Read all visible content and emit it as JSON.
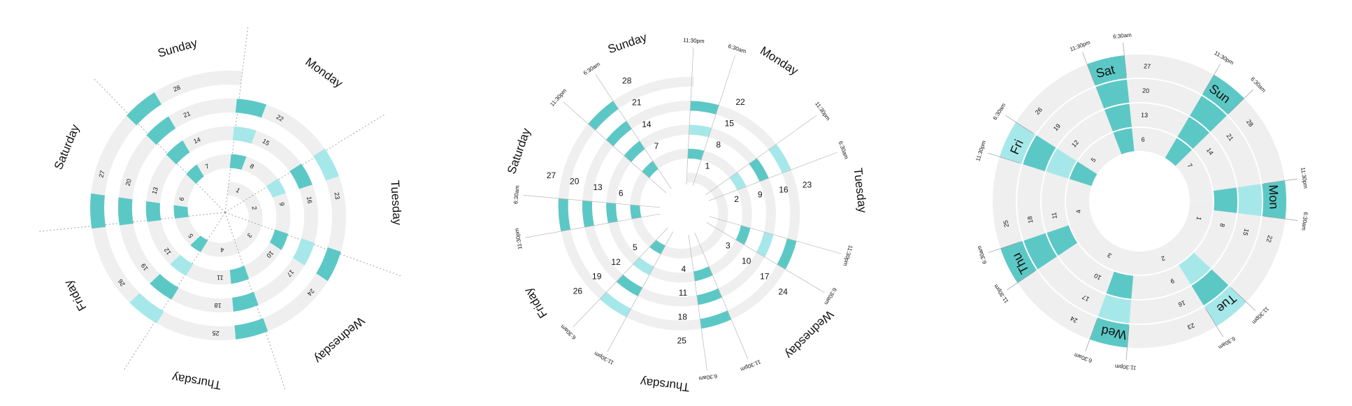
{
  "colors": {
    "track": "#efefef",
    "sleep_dark": "#5cc8c6",
    "sleep_light": "#a6e8ea",
    "guide": "#999999",
    "text": "#111111"
  },
  "chart_data": [
    {
      "type": "radial-spiral",
      "title": "",
      "days": [
        "Monday",
        "Tuesday",
        "Wednesday",
        "Thursday",
        "Friday",
        "Saturday",
        "Sunday"
      ],
      "date_labels": [
        "1",
        "2",
        "3",
        "4",
        "5",
        "6",
        "7",
        "8",
        "9",
        "10",
        "11",
        "12",
        "13",
        "14",
        "15",
        "16",
        "17",
        "18",
        "19",
        "20",
        "21",
        "22",
        "23",
        "24",
        "25",
        "26",
        "27",
        "28"
      ],
      "separators": "dotted",
      "time_labels": [],
      "sleep": [
        {
          "date": 5,
          "start": "23:30",
          "end": "06:30",
          "shade": "dark"
        },
        {
          "date": 6,
          "start": "23:30",
          "end": "06:30",
          "shade": "dark"
        },
        {
          "date": 7,
          "start": "23:30",
          "end": "06:30",
          "shade": "dark"
        },
        {
          "date": 8,
          "start": "23:30",
          "end": "06:30",
          "shade": "dark"
        },
        {
          "date": 9,
          "start": "23:30",
          "end": "06:30",
          "shade": "light"
        },
        {
          "date": 10,
          "start": "23:30",
          "end": "06:30",
          "shade": "dark"
        },
        {
          "date": 11,
          "start": "23:30",
          "end": "06:30",
          "shade": "dark"
        },
        {
          "date": 12,
          "start": "23:30",
          "end": "06:30",
          "shade": "light"
        },
        {
          "date": 13,
          "start": "23:30",
          "end": "06:30",
          "shade": "dark"
        },
        {
          "date": 14,
          "start": "23:30",
          "end": "06:30",
          "shade": "dark"
        },
        {
          "date": 15,
          "start": "23:30",
          "end": "06:30",
          "shade": "light"
        },
        {
          "date": 16,
          "start": "23:30",
          "end": "06:30",
          "shade": "dark"
        },
        {
          "date": 17,
          "start": "23:30",
          "end": "06:30",
          "shade": "light"
        },
        {
          "date": 18,
          "start": "23:30",
          "end": "06:30",
          "shade": "dark"
        },
        {
          "date": 19,
          "start": "23:30",
          "end": "06:30",
          "shade": "dark"
        },
        {
          "date": 20,
          "start": "23:30",
          "end": "06:30",
          "shade": "dark"
        },
        {
          "date": 21,
          "start": "23:30",
          "end": "06:30",
          "shade": "dark"
        },
        {
          "date": 22,
          "start": "23:30",
          "end": "06:30",
          "shade": "dark"
        },
        {
          "date": 23,
          "start": "23:30",
          "end": "06:30",
          "shade": "light"
        },
        {
          "date": 24,
          "start": "23:30",
          "end": "06:30",
          "shade": "dark"
        },
        {
          "date": 25,
          "start": "23:30",
          "end": "06:30",
          "shade": "dark"
        },
        {
          "date": 26,
          "start": "23:30",
          "end": "06:30",
          "shade": "light"
        },
        {
          "date": 27,
          "start": "23:30",
          "end": "06:30",
          "shade": "dark"
        },
        {
          "date": 28,
          "start": "23:30",
          "end": "06:30",
          "shade": "dark"
        }
      ]
    },
    {
      "type": "radial-spiral",
      "title": "",
      "days": [
        "Monday",
        "Tuesday",
        "Wednesday",
        "Thursday",
        "Friday",
        "Saturday",
        "Sunday"
      ],
      "date_labels": [
        "1",
        "2",
        "3",
        "4",
        "5",
        "6",
        "7",
        "8",
        "9",
        "10",
        "11",
        "12",
        "13",
        "14",
        "15",
        "16",
        "17",
        "18",
        "19",
        "20",
        "21",
        "22",
        "23",
        "24",
        "25",
        "26",
        "27",
        "28"
      ],
      "separators": "none",
      "time_labels": [
        "6:30am",
        "11:30pm"
      ],
      "sleep": [
        {
          "date": 5,
          "start": "23:30",
          "end": "06:30",
          "shade": "dark"
        },
        {
          "date": 6,
          "start": "23:30",
          "end": "06:30",
          "shade": "dark"
        },
        {
          "date": 7,
          "start": "23:30",
          "end": "06:30",
          "shade": "dark"
        },
        {
          "date": 8,
          "start": "23:30",
          "end": "06:30",
          "shade": "dark"
        },
        {
          "date": 9,
          "start": "23:30",
          "end": "06:30",
          "shade": "light"
        },
        {
          "date": 10,
          "start": "23:30",
          "end": "06:30",
          "shade": "dark"
        },
        {
          "date": 11,
          "start": "23:30",
          "end": "06:30",
          "shade": "dark"
        },
        {
          "date": 12,
          "start": "23:30",
          "end": "06:30",
          "shade": "light"
        },
        {
          "date": 13,
          "start": "23:30",
          "end": "06:30",
          "shade": "dark"
        },
        {
          "date": 14,
          "start": "23:30",
          "end": "06:30",
          "shade": "dark"
        },
        {
          "date": 15,
          "start": "23:30",
          "end": "06:30",
          "shade": "light"
        },
        {
          "date": 16,
          "start": "23:30",
          "end": "06:30",
          "shade": "dark"
        },
        {
          "date": 17,
          "start": "23:30",
          "end": "06:30",
          "shade": "light"
        },
        {
          "date": 18,
          "start": "23:30",
          "end": "06:30",
          "shade": "dark"
        },
        {
          "date": 19,
          "start": "23:30",
          "end": "06:30",
          "shade": "dark"
        },
        {
          "date": 20,
          "start": "23:30",
          "end": "06:30",
          "shade": "dark"
        },
        {
          "date": 21,
          "start": "23:30",
          "end": "06:30",
          "shade": "dark"
        },
        {
          "date": 22,
          "start": "23:30",
          "end": "06:30",
          "shade": "dark"
        },
        {
          "date": 23,
          "start": "23:30",
          "end": "06:30",
          "shade": "light"
        },
        {
          "date": 24,
          "start": "23:30",
          "end": "06:30",
          "shade": "dark"
        },
        {
          "date": 25,
          "start": "23:30",
          "end": "06:30",
          "shade": "dark"
        },
        {
          "date": 26,
          "start": "23:30",
          "end": "06:30",
          "shade": "light"
        },
        {
          "date": 27,
          "start": "23:30",
          "end": "06:30",
          "shade": "dark"
        },
        {
          "date": 28,
          "start": "23:30",
          "end": "06:30",
          "shade": "dark"
        }
      ]
    },
    {
      "type": "radial-concentric",
      "title": "",
      "days": [
        "Mon",
        "Tue",
        "Wed",
        "Thu",
        "Fri",
        "Sat",
        "Sun"
      ],
      "date_labels": [
        "1",
        "2",
        "3",
        "4",
        "5",
        "6",
        "7",
        "8",
        "9",
        "10",
        "11",
        "12",
        "13",
        "14",
        "15",
        "16",
        "17",
        "18",
        "19",
        "20",
        "21",
        "22",
        "23",
        "24",
        "25",
        "26",
        "27",
        "28"
      ],
      "separators": "none",
      "time_labels": [
        "6:30am",
        "11:30pm"
      ],
      "sleep": [
        {
          "date": 5,
          "start": "23:30",
          "end": "06:30",
          "shade": "dark"
        },
        {
          "date": 6,
          "start": "23:30",
          "end": "06:30",
          "shade": "dark"
        },
        {
          "date": 7,
          "start": "23:30",
          "end": "06:30",
          "shade": "dark"
        },
        {
          "date": 8,
          "start": "23:30",
          "end": "06:30",
          "shade": "dark"
        },
        {
          "date": 9,
          "start": "23:30",
          "end": "06:30",
          "shade": "light"
        },
        {
          "date": 10,
          "start": "23:30",
          "end": "06:30",
          "shade": "dark"
        },
        {
          "date": 11,
          "start": "23:30",
          "end": "06:30",
          "shade": "dark"
        },
        {
          "date": 12,
          "start": "23:30",
          "end": "06:30",
          "shade": "light"
        },
        {
          "date": 13,
          "start": "23:30",
          "end": "06:30",
          "shade": "dark"
        },
        {
          "date": 14,
          "start": "23:30",
          "end": "06:30",
          "shade": "dark"
        },
        {
          "date": 15,
          "start": "23:30",
          "end": "06:30",
          "shade": "light"
        },
        {
          "date": 16,
          "start": "23:30",
          "end": "06:30",
          "shade": "dark"
        },
        {
          "date": 17,
          "start": "23:30",
          "end": "06:30",
          "shade": "light"
        },
        {
          "date": 18,
          "start": "23:30",
          "end": "06:30",
          "shade": "dark"
        },
        {
          "date": 19,
          "start": "23:30",
          "end": "06:30",
          "shade": "dark"
        },
        {
          "date": 20,
          "start": "23:30",
          "end": "06:30",
          "shade": "dark"
        },
        {
          "date": 21,
          "start": "23:30",
          "end": "06:30",
          "shade": "dark"
        },
        {
          "date": 22,
          "start": "23:30",
          "end": "06:30",
          "shade": "dark"
        },
        {
          "date": 23,
          "start": "23:30",
          "end": "06:30",
          "shade": "light"
        },
        {
          "date": 24,
          "start": "23:30",
          "end": "06:30",
          "shade": "dark"
        },
        {
          "date": 25,
          "start": "23:30",
          "end": "06:30",
          "shade": "dark"
        },
        {
          "date": 26,
          "start": "23:30",
          "end": "06:30",
          "shade": "light"
        },
        {
          "date": 27,
          "start": "23:30",
          "end": "06:30",
          "shade": "dark"
        },
        {
          "date": 28,
          "start": "23:30",
          "end": "06:30",
          "shade": "dark"
        }
      ]
    }
  ]
}
